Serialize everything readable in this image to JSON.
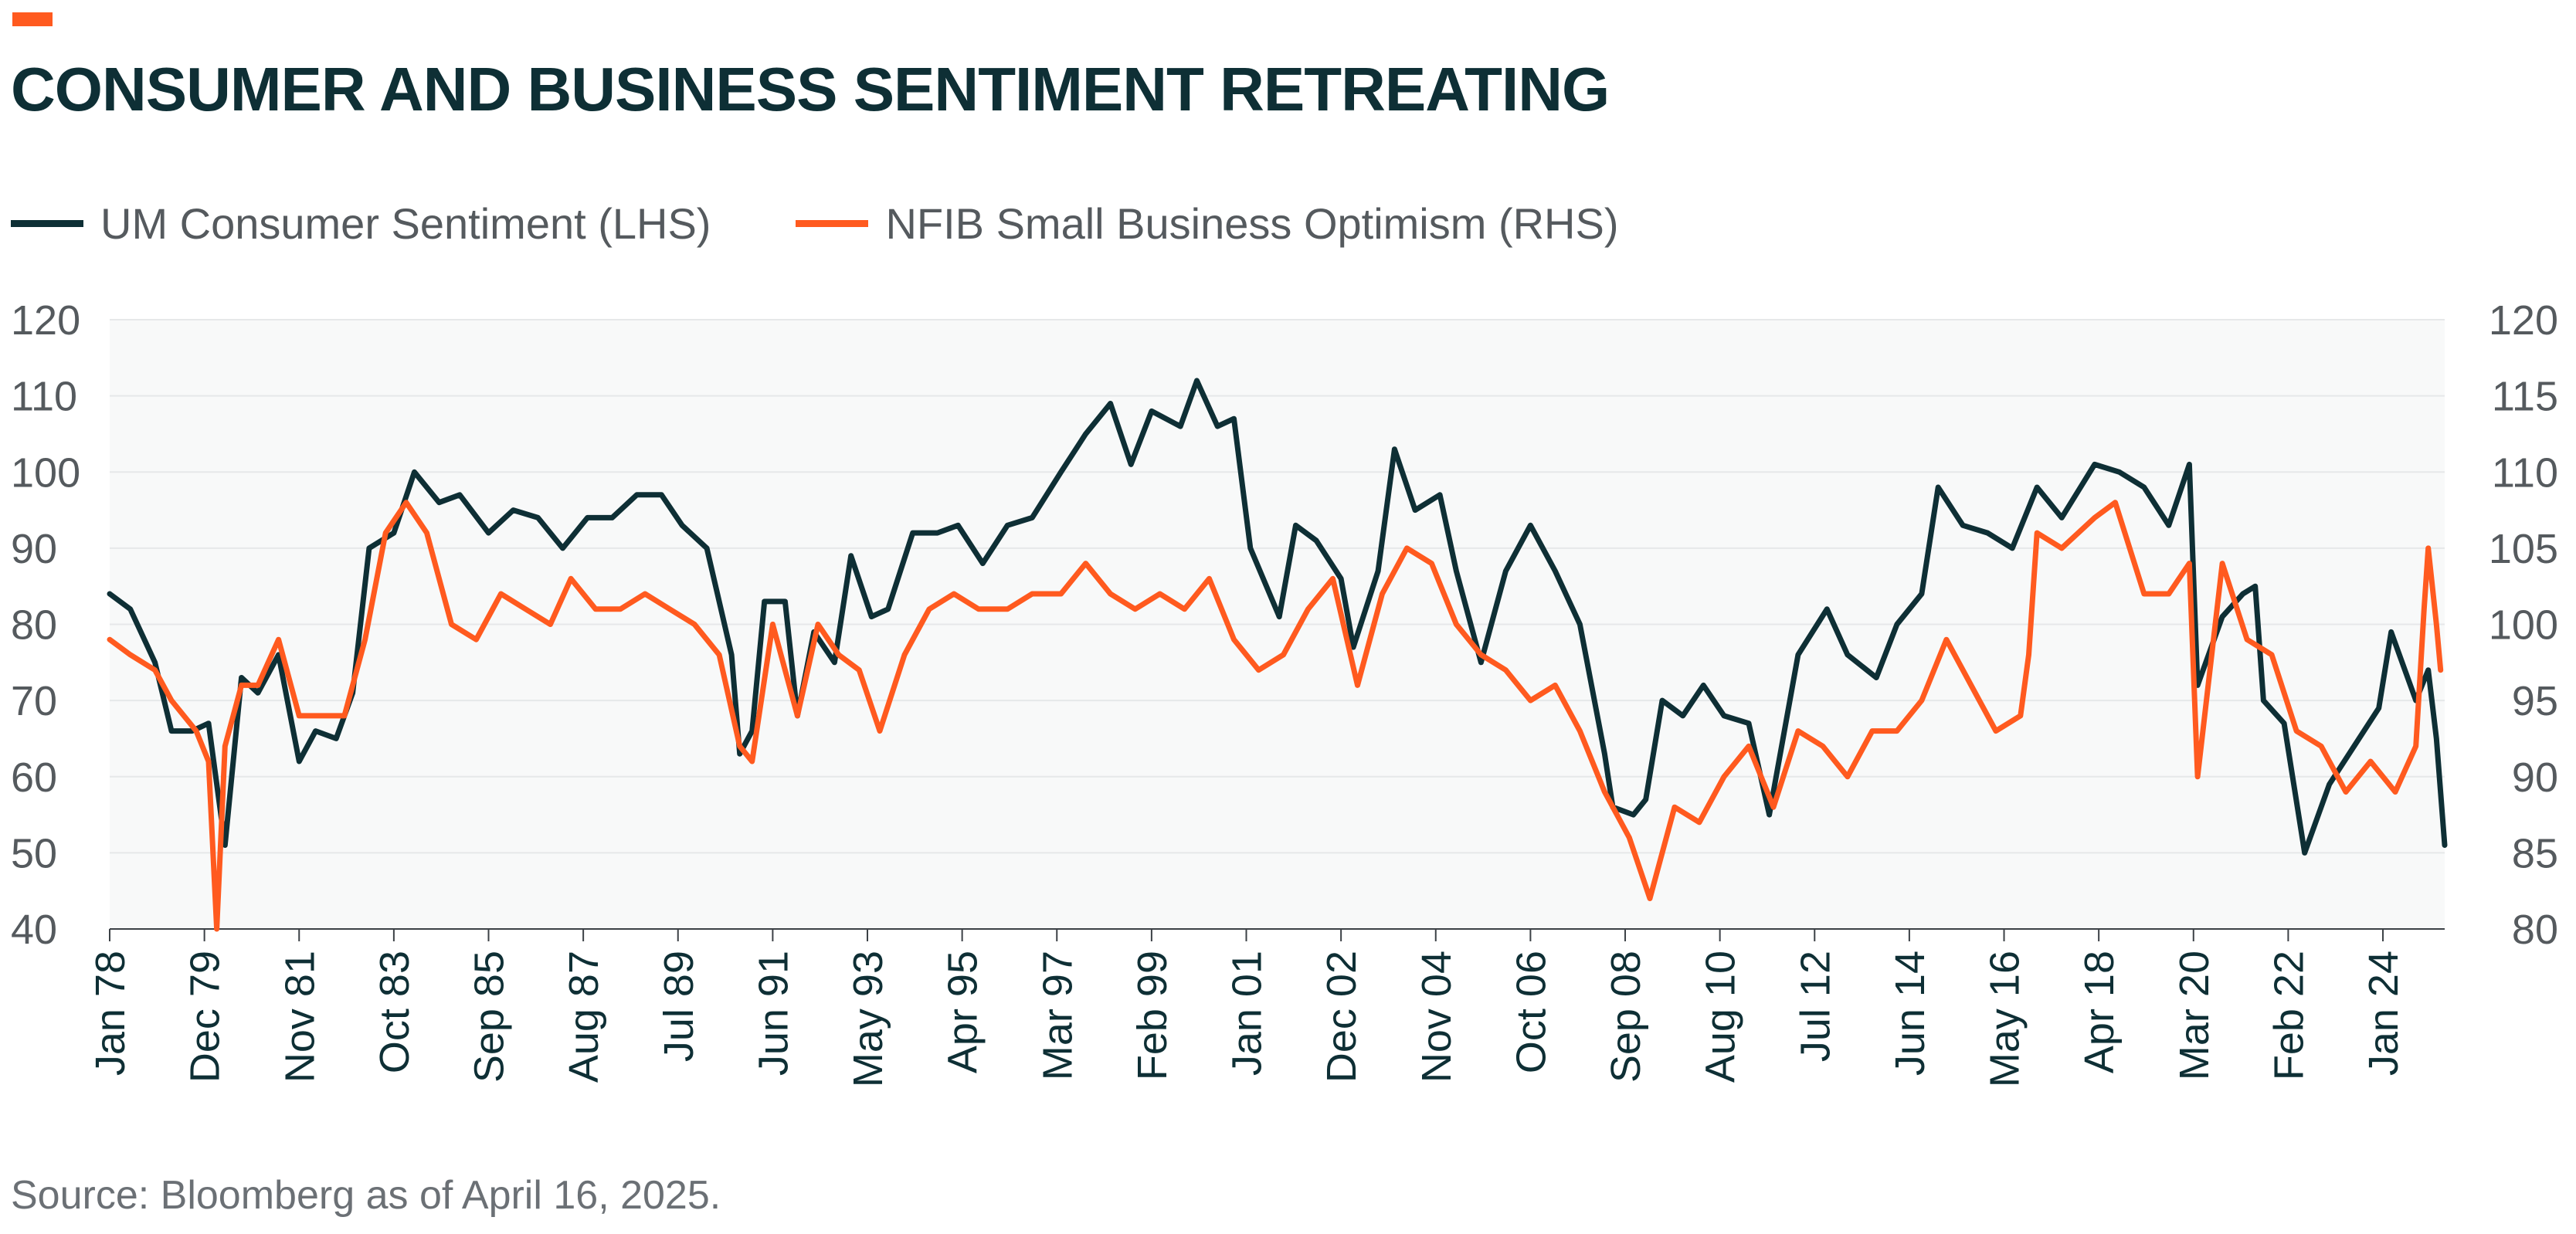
{
  "header": {
    "title": "CONSUMER AND BUSINESS SENTIMENT RETREATING",
    "accent_color": "#ff5a1f",
    "title_color": "#0e2f35"
  },
  "footer": {
    "source": "Source: Bloomberg as of April 16, 2025."
  },
  "chart_data": {
    "type": "line",
    "title": "CONSUMER AND BUSINESS SENTIMENT RETREATING",
    "x_tick_labels": [
      "Jan 78",
      "Dec 79",
      "Nov 81",
      "Oct 83",
      "Sep 85",
      "Aug 87",
      "Jul 89",
      "Jun 91",
      "May 93",
      "Apr 95",
      "Mar 97",
      "Feb 99",
      "Jan 01",
      "Dec 02",
      "Nov 04",
      "Oct 06",
      "Sep 08",
      "Aug 10",
      "Jul 12",
      "Jun 14",
      "May 16",
      "Apr 18",
      "Mar 20",
      "Feb 22",
      "Jan 24"
    ],
    "x_range": [
      "1978-01",
      "2025-04"
    ],
    "y_left": {
      "range": [
        40,
        120
      ],
      "ticks": [
        40,
        50,
        60,
        70,
        80,
        90,
        100,
        110,
        120
      ]
    },
    "y_right": {
      "range": [
        80,
        120
      ],
      "ticks": [
        80,
        85,
        90,
        95,
        100,
        105,
        110,
        115,
        120
      ]
    },
    "grid": true,
    "legend_position": "top-left",
    "series": [
      {
        "name": "UM Consumer Sentiment (LHS)",
        "axis": "left",
        "color": "#0e2f35",
        "points": [
          [
            "1978-01",
            84
          ],
          [
            "1978-06",
            82
          ],
          [
            "1978-12",
            75
          ],
          [
            "1979-04",
            66
          ],
          [
            "1979-09",
            66
          ],
          [
            "1980-01",
            67
          ],
          [
            "1980-05",
            51
          ],
          [
            "1980-09",
            73
          ],
          [
            "1981-01",
            71
          ],
          [
            "1981-06",
            76
          ],
          [
            "1981-11",
            62
          ],
          [
            "1982-03",
            66
          ],
          [
            "1982-08",
            65
          ],
          [
            "1982-12",
            71
          ],
          [
            "1983-04",
            90
          ],
          [
            "1983-10",
            92
          ],
          [
            "1984-03",
            100
          ],
          [
            "1984-09",
            96
          ],
          [
            "1985-02",
            97
          ],
          [
            "1985-09",
            92
          ],
          [
            "1986-03",
            95
          ],
          [
            "1986-09",
            94
          ],
          [
            "1987-03",
            90
          ],
          [
            "1987-09",
            94
          ],
          [
            "1988-03",
            94
          ],
          [
            "1988-09",
            97
          ],
          [
            "1989-03",
            97
          ],
          [
            "1989-08",
            93
          ],
          [
            "1990-02",
            90
          ],
          [
            "1990-08",
            76
          ],
          [
            "1990-10",
            63
          ],
          [
            "1991-01",
            66
          ],
          [
            "1991-04",
            83
          ],
          [
            "1991-09",
            83
          ],
          [
            "1991-12",
            68
          ],
          [
            "1992-04",
            79
          ],
          [
            "1992-09",
            75
          ],
          [
            "1993-01",
            89
          ],
          [
            "1993-06",
            81
          ],
          [
            "1993-10",
            82
          ],
          [
            "1994-04",
            92
          ],
          [
            "1994-10",
            92
          ],
          [
            "1995-03",
            93
          ],
          [
            "1995-09",
            88
          ],
          [
            "1996-03",
            93
          ],
          [
            "1996-09",
            94
          ],
          [
            "1997-04",
            100
          ],
          [
            "1997-10",
            105
          ],
          [
            "1998-04",
            109
          ],
          [
            "1998-09",
            101
          ],
          [
            "1999-02",
            108
          ],
          [
            "1999-09",
            106
          ],
          [
            "2000-01",
            112
          ],
          [
            "2000-06",
            106
          ],
          [
            "2000-10",
            107
          ],
          [
            "2001-02",
            90
          ],
          [
            "2001-09",
            81
          ],
          [
            "2002-01",
            93
          ],
          [
            "2002-06",
            91
          ],
          [
            "2002-12",
            86
          ],
          [
            "2003-03",
            77
          ],
          [
            "2003-09",
            87
          ],
          [
            "2004-01",
            103
          ],
          [
            "2004-06",
            95
          ],
          [
            "2004-12",
            97
          ],
          [
            "2005-04",
            87
          ],
          [
            "2005-10",
            75
          ],
          [
            "2006-04",
            87
          ],
          [
            "2006-10",
            93
          ],
          [
            "2007-04",
            87
          ],
          [
            "2007-10",
            80
          ],
          [
            "2008-04",
            63
          ],
          [
            "2008-06",
            56
          ],
          [
            "2008-11",
            55
          ],
          [
            "2009-02",
            57
          ],
          [
            "2009-06",
            70
          ],
          [
            "2009-11",
            68
          ],
          [
            "2010-04",
            72
          ],
          [
            "2010-09",
            68
          ],
          [
            "2011-03",
            67
          ],
          [
            "2011-08",
            55
          ],
          [
            "2012-03",
            76
          ],
          [
            "2012-10",
            82
          ],
          [
            "2013-03",
            76
          ],
          [
            "2013-10",
            73
          ],
          [
            "2014-03",
            80
          ],
          [
            "2014-09",
            84
          ],
          [
            "2015-01",
            98
          ],
          [
            "2015-07",
            93
          ],
          [
            "2016-01",
            92
          ],
          [
            "2016-07",
            90
          ],
          [
            "2017-01",
            98
          ],
          [
            "2017-07",
            94
          ],
          [
            "2018-03",
            101
          ],
          [
            "2018-09",
            100
          ],
          [
            "2019-03",
            98
          ],
          [
            "2019-09",
            93
          ],
          [
            "2020-02",
            101
          ],
          [
            "2020-04",
            72
          ],
          [
            "2020-10",
            81
          ],
          [
            "2021-03",
            84
          ],
          [
            "2021-06",
            85
          ],
          [
            "2021-08",
            70
          ],
          [
            "2022-01",
            67
          ],
          [
            "2022-06",
            50
          ],
          [
            "2022-12",
            59
          ],
          [
            "2023-06",
            64
          ],
          [
            "2023-12",
            69
          ],
          [
            "2024-03",
            79
          ],
          [
            "2024-09",
            70
          ],
          [
            "2024-12",
            74
          ],
          [
            "2025-02",
            65
          ],
          [
            "2025-04",
            51
          ]
        ]
      },
      {
        "name": "NFIB Small Business Optimism (RHS)",
        "axis": "right",
        "color": "#ff5a1f",
        "points": [
          [
            "1978-01",
            99
          ],
          [
            "1978-06",
            98
          ],
          [
            "1978-12",
            97
          ],
          [
            "1979-04",
            95
          ],
          [
            "1979-10",
            93
          ],
          [
            "1980-01",
            91
          ],
          [
            "1980-03",
            80
          ],
          [
            "1980-05",
            92
          ],
          [
            "1980-09",
            96
          ],
          [
            "1981-01",
            96
          ],
          [
            "1981-06",
            99
          ],
          [
            "1981-11",
            94
          ],
          [
            "1982-04",
            94
          ],
          [
            "1982-10",
            94
          ],
          [
            "1983-03",
            99
          ],
          [
            "1983-08",
            106
          ],
          [
            "1984-01",
            108
          ],
          [
            "1984-06",
            106
          ],
          [
            "1984-12",
            100
          ],
          [
            "1985-06",
            99
          ],
          [
            "1985-12",
            102
          ],
          [
            "1986-06",
            101
          ],
          [
            "1986-12",
            100
          ],
          [
            "1987-05",
            103
          ],
          [
            "1987-11",
            101
          ],
          [
            "1988-05",
            101
          ],
          [
            "1988-11",
            102
          ],
          [
            "1989-05",
            101
          ],
          [
            "1989-11",
            100
          ],
          [
            "1990-05",
            98
          ],
          [
            "1990-10",
            92
          ],
          [
            "1991-01",
            91
          ],
          [
            "1991-06",
            100
          ],
          [
            "1991-12",
            94
          ],
          [
            "1992-05",
            100
          ],
          [
            "1992-10",
            98
          ],
          [
            "1993-03",
            97
          ],
          [
            "1993-08",
            93
          ],
          [
            "1994-02",
            98
          ],
          [
            "1994-08",
            101
          ],
          [
            "1995-02",
            102
          ],
          [
            "1995-08",
            101
          ],
          [
            "1996-03",
            101
          ],
          [
            "1996-09",
            102
          ],
          [
            "1997-04",
            102
          ],
          [
            "1997-10",
            104
          ],
          [
            "1998-04",
            102
          ],
          [
            "1998-10",
            101
          ],
          [
            "1999-04",
            102
          ],
          [
            "1999-10",
            101
          ],
          [
            "2000-04",
            103
          ],
          [
            "2000-10",
            99
          ],
          [
            "2001-04",
            97
          ],
          [
            "2001-10",
            98
          ],
          [
            "2002-04",
            101
          ],
          [
            "2002-10",
            103
          ],
          [
            "2003-04",
            96
          ],
          [
            "2003-10",
            102
          ],
          [
            "2004-04",
            105
          ],
          [
            "2004-10",
            104
          ],
          [
            "2005-04",
            100
          ],
          [
            "2005-10",
            98
          ],
          [
            "2006-04",
            97
          ],
          [
            "2006-10",
            95
          ],
          [
            "2007-04",
            96
          ],
          [
            "2007-10",
            93
          ],
          [
            "2008-04",
            89
          ],
          [
            "2008-10",
            86
          ],
          [
            "2009-03",
            82
          ],
          [
            "2009-09",
            88
          ],
          [
            "2010-03",
            87
          ],
          [
            "2010-09",
            90
          ],
          [
            "2011-03",
            92
          ],
          [
            "2011-09",
            88
          ],
          [
            "2012-03",
            93
          ],
          [
            "2012-09",
            92
          ],
          [
            "2013-03",
            90
          ],
          [
            "2013-09",
            93
          ],
          [
            "2014-03",
            93
          ],
          [
            "2014-09",
            95
          ],
          [
            "2015-03",
            99
          ],
          [
            "2015-09",
            96
          ],
          [
            "2016-03",
            93
          ],
          [
            "2016-09",
            94
          ],
          [
            "2016-11",
            98
          ],
          [
            "2017-01",
            106
          ],
          [
            "2017-07",
            105
          ],
          [
            "2018-03",
            107
          ],
          [
            "2018-08",
            108
          ],
          [
            "2019-03",
            102
          ],
          [
            "2019-09",
            102
          ],
          [
            "2020-02",
            104
          ],
          [
            "2020-04",
            90
          ],
          [
            "2020-10",
            104
          ],
          [
            "2021-04",
            99
          ],
          [
            "2021-10",
            98
          ],
          [
            "2022-04",
            93
          ],
          [
            "2022-10",
            92
          ],
          [
            "2023-04",
            89
          ],
          [
            "2023-10",
            91
          ],
          [
            "2024-04",
            89
          ],
          [
            "2024-09",
            92
          ],
          [
            "2024-11",
            101
          ],
          [
            "2024-12",
            105
          ],
          [
            "2025-02",
            100
          ],
          [
            "2025-03",
            97
          ]
        ]
      }
    ]
  }
}
